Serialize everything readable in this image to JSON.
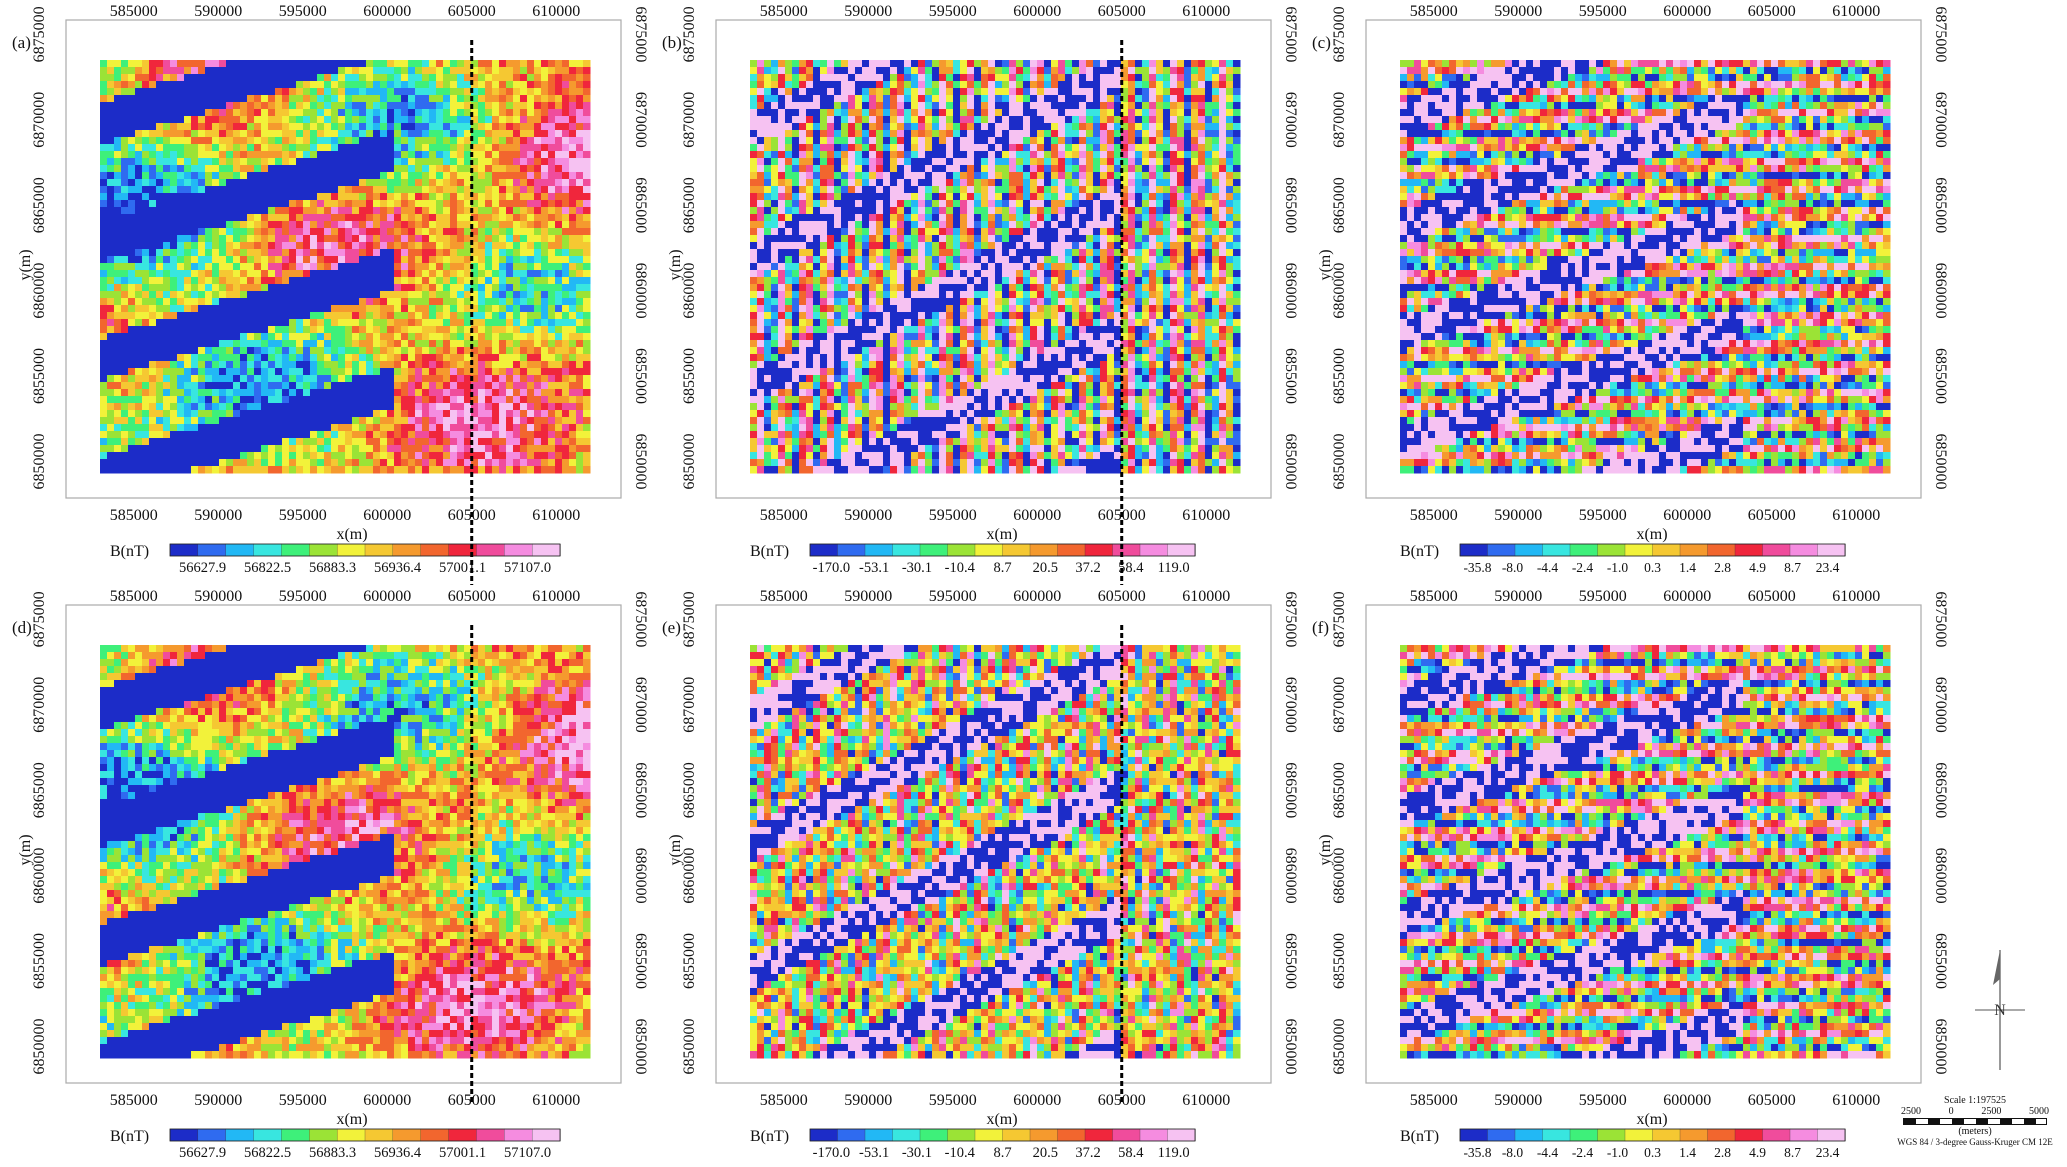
{
  "figure": {
    "colors": {
      "frame": "#aaaaaa",
      "tick_text": "#111111",
      "cut_line": "#000000"
    },
    "ramp_colors": [
      "#1c2cc8",
      "#2f6bf0",
      "#22b8f5",
      "#38e6e0",
      "#3ef07a",
      "#9be336",
      "#f2f23a",
      "#f5c832",
      "#f59a2e",
      "#f2662e",
      "#f0263c",
      "#f04c9c",
      "#f58ce0",
      "#f6c2f2"
    ]
  },
  "panels": [
    {
      "id": "a",
      "label": "(a)",
      "xticks": [
        "585000",
        "590000",
        "595000",
        "600000",
        "605000",
        "610000"
      ],
      "yticks": [
        "6850000",
        "6855000",
        "6860000",
        "6865000",
        "6870000",
        "6875000"
      ],
      "xlabel": "x(m)",
      "ylabel": "y(m)",
      "colorbar": {
        "title": "B(nT)",
        "labels": [
          "56627.9",
          "56822.5",
          "56883.3",
          "56936.4",
          "57001.1",
          "57107.0"
        ]
      }
    },
    {
      "id": "b",
      "label": "(b)",
      "xticks": [
        "585000",
        "590000",
        "595000",
        "600000",
        "605000",
        "610000"
      ],
      "yticks": [
        "6850000",
        "6855000",
        "6860000",
        "6865000",
        "6870000",
        "6875000"
      ],
      "xlabel": "x(m)",
      "ylabel": "y(m)",
      "colorbar": {
        "title": "B(nT)",
        "labels": [
          "-170.0",
          "-53.1",
          "-30.1",
          "-10.4",
          "8.7",
          "20.5",
          "37.2",
          "58.4",
          "119.0"
        ]
      }
    },
    {
      "id": "c",
      "label": "(c)",
      "xticks": [
        "585000",
        "590000",
        "595000",
        "600000",
        "605000",
        "610000"
      ],
      "yticks": [
        "6850000",
        "6855000",
        "6860000",
        "6865000",
        "6870000",
        "6875000"
      ],
      "xlabel": "x(m)",
      "ylabel": "y(m)",
      "colorbar": {
        "title": "B(nT)",
        "labels": [
          "-35.8",
          "-8.0",
          "-4.4",
          "-2.4",
          "-1.0",
          "0.3",
          "1.4",
          "2.8",
          "4.9",
          "8.7",
          "23.4"
        ]
      }
    },
    {
      "id": "d",
      "label": "(d)",
      "xticks": [
        "585000",
        "590000",
        "595000",
        "600000",
        "605000",
        "610000"
      ],
      "yticks": [
        "6850000",
        "6855000",
        "6860000",
        "6865000",
        "6870000",
        "6875000"
      ],
      "xlabel": "x(m)",
      "ylabel": "y(m)",
      "colorbar": {
        "title": "B(nT)",
        "labels": [
          "56627.9",
          "56822.5",
          "56883.3",
          "56936.4",
          "57001.1",
          "57107.0"
        ]
      }
    },
    {
      "id": "e",
      "label": "(e)",
      "xticks": [
        "585000",
        "590000",
        "595000",
        "600000",
        "605000",
        "610000"
      ],
      "yticks": [
        "6850000",
        "6855000",
        "6860000",
        "6865000",
        "6870000",
        "6875000"
      ],
      "xlabel": "x(m)",
      "ylabel": "y(m)",
      "colorbar": {
        "title": "B(nT)",
        "labels": [
          "-170.0",
          "-53.1",
          "-30.1",
          "-10.4",
          "8.7",
          "20.5",
          "37.2",
          "58.4",
          "119.0"
        ]
      }
    },
    {
      "id": "f",
      "label": "(f)",
      "xticks": [
        "585000",
        "590000",
        "595000",
        "600000",
        "605000",
        "610000"
      ],
      "yticks": [
        "6850000",
        "6855000",
        "6860000",
        "6865000",
        "6870000",
        "6875000"
      ],
      "xlabel": "x(m)",
      "ylabel": "y(m)",
      "colorbar": {
        "title": "B(nT)",
        "labels": [
          "-35.8",
          "-8.0",
          "-4.4",
          "-2.4",
          "-1.0",
          "0.3",
          "1.4",
          "2.8",
          "4.9",
          "8.7",
          "23.4"
        ]
      }
    }
  ],
  "scale": {
    "ratio": "Scale 1:197525",
    "ticks": [
      "2500",
      "0",
      "2500",
      "5000"
    ],
    "unit": "(meters)",
    "projection": "WGS 84 / 3-degree Gauss-Kruger CM 12E"
  },
  "chart_data": [
    {
      "type": "heatmap",
      "panel": "(a)",
      "xlabel": "x(m)",
      "ylabel": "y(m)",
      "xlim": [
        583000,
        612000
      ],
      "ylim": [
        6849500,
        6873500
      ],
      "x_ticks": [
        585000,
        590000,
        595000,
        600000,
        605000,
        610000
      ],
      "y_ticks": [
        6850000,
        6855000,
        6860000,
        6865000,
        6870000,
        6875000
      ],
      "colorbar_title": "B(nT)",
      "colorbar_values": [
        56627.9,
        56822.5,
        56883.3,
        56936.4,
        57001.1,
        57107.0
      ],
      "profile_x": 605000
    },
    {
      "type": "heatmap",
      "panel": "(b)",
      "xlabel": "x(m)",
      "ylabel": "y(m)",
      "xlim": [
        583000,
        612000
      ],
      "ylim": [
        6849500,
        6873500
      ],
      "x_ticks": [
        585000,
        590000,
        595000,
        600000,
        605000,
        610000
      ],
      "y_ticks": [
        6850000,
        6855000,
        6860000,
        6865000,
        6870000,
        6875000
      ],
      "colorbar_title": "B(nT)",
      "colorbar_values": [
        -170.0,
        -53.1,
        -30.1,
        -10.4,
        8.7,
        20.5,
        37.2,
        58.4,
        119.0
      ],
      "profile_x": 605000
    },
    {
      "type": "heatmap",
      "panel": "(c)",
      "xlabel": "x(m)",
      "ylabel": "y(m)",
      "xlim": [
        583000,
        612000
      ],
      "ylim": [
        6849500,
        6873500
      ],
      "x_ticks": [
        585000,
        590000,
        595000,
        600000,
        605000,
        610000
      ],
      "y_ticks": [
        6850000,
        6855000,
        6860000,
        6865000,
        6870000,
        6875000
      ],
      "colorbar_title": "B(nT)",
      "colorbar_values": [
        -35.8,
        -8.0,
        -4.4,
        -2.4,
        -1.0,
        0.3,
        1.4,
        2.8,
        4.9,
        8.7,
        23.4
      ]
    },
    {
      "type": "heatmap",
      "panel": "(d)",
      "xlabel": "x(m)",
      "ylabel": "y(m)",
      "xlim": [
        583000,
        612000
      ],
      "ylim": [
        6849500,
        6873500
      ],
      "x_ticks": [
        585000,
        590000,
        595000,
        600000,
        605000,
        610000
      ],
      "y_ticks": [
        6850000,
        6855000,
        6860000,
        6865000,
        6870000,
        6875000
      ],
      "colorbar_title": "B(nT)",
      "colorbar_values": [
        56627.9,
        56822.5,
        56883.3,
        56936.4,
        57001.1,
        57107.0
      ],
      "profile_x": 605000
    },
    {
      "type": "heatmap",
      "panel": "(e)",
      "xlabel": "x(m)",
      "ylabel": "y(m)",
      "xlim": [
        583000,
        612000
      ],
      "ylim": [
        6849500,
        6873500
      ],
      "x_ticks": [
        585000,
        590000,
        595000,
        600000,
        605000,
        610000
      ],
      "y_ticks": [
        6850000,
        6855000,
        6860000,
        6865000,
        6870000,
        6875000
      ],
      "colorbar_title": "B(nT)",
      "colorbar_values": [
        -170.0,
        -53.1,
        -30.1,
        -10.4,
        8.7,
        20.5,
        37.2,
        58.4,
        119.0
      ],
      "profile_x": 605000
    },
    {
      "type": "heatmap",
      "panel": "(f)",
      "xlabel": "x(m)",
      "ylabel": "y(m)",
      "xlim": [
        583000,
        612000
      ],
      "ylim": [
        6849500,
        6873500
      ],
      "x_ticks": [
        585000,
        590000,
        595000,
        600000,
        605000,
        610000
      ],
      "y_ticks": [
        6850000,
        6855000,
        6860000,
        6865000,
        6870000,
        6875000
      ],
      "colorbar_title": "B(nT)",
      "colorbar_values": [
        -35.8,
        -8.0,
        -4.4,
        -2.4,
        -1.0,
        0.3,
        1.4,
        2.8,
        4.9,
        8.7,
        23.4
      ]
    }
  ]
}
